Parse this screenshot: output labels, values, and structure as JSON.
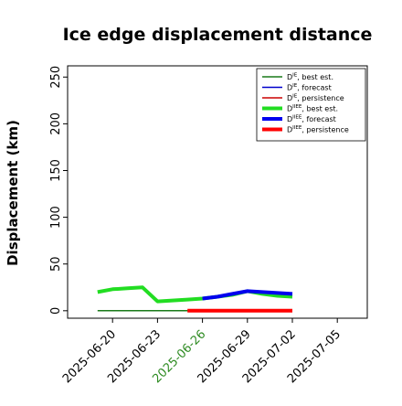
{
  "chart_data": {
    "type": "line",
    "title": "Ice edge displacement distance",
    "ylabel": "Displacement (km)",
    "xlabel": "",
    "ylim": [
      -8,
      262
    ],
    "xlim": [
      "2025-06-17",
      "2025-07-07"
    ],
    "grid": false,
    "legend_position": "top-right",
    "yticks": [
      0,
      50,
      100,
      150,
      200,
      250
    ],
    "xticks": [
      {
        "date": "2025-06-20",
        "label": "2025-06-20",
        "color": "#000000"
      },
      {
        "date": "2025-06-23",
        "label": "2025-06-23",
        "color": "#000000"
      },
      {
        "date": "2025-06-26",
        "label": "2025-06-26",
        "color": "#2e8b22"
      },
      {
        "date": "2025-06-29",
        "label": "2025-06-29",
        "color": "#000000"
      },
      {
        "date": "2025-07-02",
        "label": "2025-07-02",
        "color": "#000000"
      },
      {
        "date": "2025-07-05",
        "label": "2025-07-05",
        "color": "#000000"
      }
    ],
    "series": [
      {
        "name": "D^IE, best est.",
        "sup": "IE",
        "label_text": ", best est.",
        "color": "#1a7a1a",
        "width": 1.5,
        "x": [
          "2025-06-19",
          "2025-06-20",
          "2025-06-21",
          "2025-06-22",
          "2025-06-23",
          "2025-06-24",
          "2025-06-25",
          "2025-06-26"
        ],
        "y": [
          0,
          0,
          0,
          0,
          0,
          0,
          0,
          0
        ]
      },
      {
        "name": "D^IE, forecast",
        "sup": "IE",
        "label_text": ", forecast",
        "color": "#0000cc",
        "width": 1.5,
        "x": [
          "2025-06-26",
          "2025-07-02"
        ],
        "y": [
          0,
          0
        ]
      },
      {
        "name": "D^IE, persistence",
        "sup": "IE",
        "label_text": ", persistence",
        "color": "#cc0000",
        "width": 1.5,
        "x": [
          "2025-06-26",
          "2025-07-02"
        ],
        "y": [
          0,
          0
        ]
      },
      {
        "name": "D^IIEE, best est.",
        "sup": "IIEE",
        "label_text": ", best est.",
        "color": "#22dd22",
        "width": 4,
        "x": [
          "2025-06-19",
          "2025-06-20",
          "2025-06-21",
          "2025-06-22",
          "2025-06-23",
          "2025-06-24",
          "2025-06-25",
          "2025-06-26",
          "2025-06-27",
          "2025-06-28",
          "2025-06-29",
          "2025-06-30",
          "2025-07-01",
          "2025-07-02"
        ],
        "y": [
          20,
          23,
          24,
          25,
          10,
          11,
          12,
          13,
          15,
          17,
          21,
          18,
          16,
          15
        ]
      },
      {
        "name": "D^IIEE, forecast",
        "sup": "IIEE",
        "label_text": ", forecast",
        "color": "#0000ee",
        "width": 4,
        "x": [
          "2025-06-26",
          "2025-06-27",
          "2025-06-28",
          "2025-06-29",
          "2025-06-30",
          "2025-07-01",
          "2025-07-02"
        ],
        "y": [
          13,
          15,
          18,
          21,
          20,
          19,
          18
        ]
      },
      {
        "name": "D^IIEE, persistence",
        "sup": "IIEE",
        "label_text": ", persistence",
        "color": "#ff0000",
        "width": 4,
        "x": [
          "2025-06-25",
          "2025-06-26",
          "2025-06-27",
          "2025-06-28",
          "2025-06-29",
          "2025-06-30",
          "2025-07-01",
          "2025-07-02"
        ],
        "y": [
          0,
          0,
          0,
          0,
          0,
          0,
          0,
          0
        ]
      }
    ]
  }
}
